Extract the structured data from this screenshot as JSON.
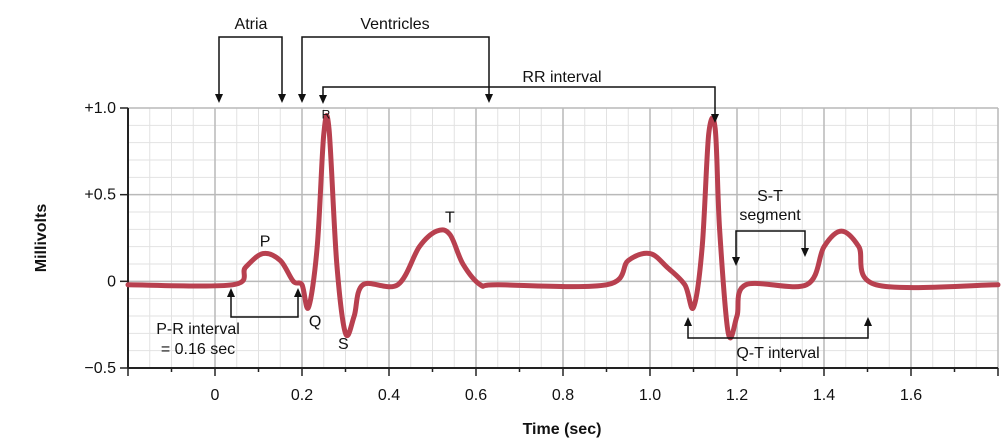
{
  "chart_data": {
    "type": "line",
    "xlabel": "Time (sec)",
    "ylabel": "Millivolts",
    "xlim": [
      -0.2,
      1.8
    ],
    "ylim": [
      -0.5,
      1.0
    ],
    "x_ticks": [
      "0",
      "0.2",
      "0.4",
      "0.6",
      "0.8",
      "1.0",
      "1.2",
      "1.4",
      "1.6"
    ],
    "x_tick_values": [
      0,
      0.2,
      0.4,
      0.6,
      0.8,
      1.0,
      1.2,
      1.4,
      1.6
    ],
    "y_ticks": [
      "+1.0",
      "+0.5",
      "0",
      "−0.5"
    ],
    "y_tick_values": [
      1.0,
      0.5,
      0,
      -0.5
    ],
    "grid": true,
    "colors": {
      "trace": "#b8404f",
      "grid_minor": "#e2e2e2",
      "grid_major": "#b9b9b9",
      "axis": "#222222"
    },
    "series": [
      {
        "x": [
          -0.2,
          0.04,
          0.07,
          0.11,
          0.15,
          0.18,
          0.2,
          0.215,
          0.235,
          0.25,
          0.262,
          0.28,
          0.3,
          0.32,
          0.34,
          0.42,
          0.47,
          0.51,
          0.54,
          0.57,
          0.61,
          0.65,
          0.9,
          0.95,
          1.0,
          1.04,
          1.08,
          1.1,
          1.12,
          1.135,
          1.15,
          1.16,
          1.18,
          1.2,
          1.22,
          1.36,
          1.4,
          1.44,
          1.48,
          1.52,
          1.8
        ],
        "y": [
          -0.02,
          -0.02,
          0.08,
          0.16,
          0.12,
          0.0,
          -0.02,
          -0.15,
          0.2,
          0.85,
          0.88,
          0.1,
          -0.3,
          -0.2,
          -0.02,
          -0.02,
          0.2,
          0.29,
          0.27,
          0.1,
          -0.02,
          -0.02,
          -0.02,
          0.12,
          0.16,
          0.08,
          -0.02,
          -0.15,
          0.2,
          0.85,
          0.88,
          0.3,
          -0.3,
          -0.2,
          -0.02,
          -0.02,
          0.2,
          0.29,
          0.2,
          -0.02,
          -0.02
        ]
      }
    ],
    "annotations": {
      "wave_labels": [
        {
          "text": "P",
          "x": 0.115,
          "y": 0.2
        },
        {
          "text": "Q",
          "x": 0.23,
          "y": -0.26
        },
        {
          "text": "R",
          "x": 0.255,
          "y": 0.94
        },
        {
          "text": "S",
          "x": 0.295,
          "y": -0.39
        },
        {
          "text": "T",
          "x": 0.54,
          "y": 0.34
        }
      ],
      "atria": "Atria",
      "ventricles": "Ventricles",
      "rr_interval": "RR interval",
      "st_segment": [
        "S-T",
        "segment"
      ],
      "pr_interval": [
        "P-R interval",
        "= 0.16 sec"
      ],
      "qt_interval": "Q-T interval"
    }
  }
}
